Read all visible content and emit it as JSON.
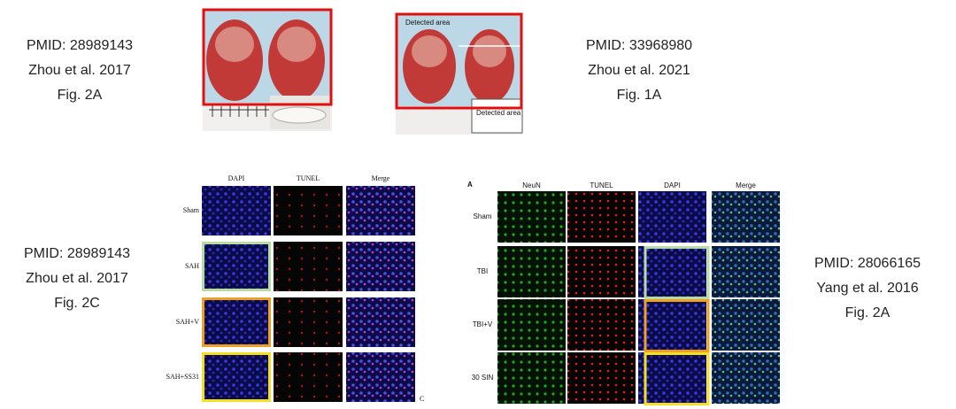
{
  "panels": [
    {
      "lines": [
        "PMID: 28989143",
        "Zhou et al. 2017",
        "Fig. 2A"
      ]
    },
    {
      "lines": [
        "PMID: 33968980",
        "Zhou et al. 2021",
        "Fig. 1A"
      ]
    },
    {
      "lines": [
        "PMID: 28989143",
        "Zhou et al. 2017",
        "Fig. 2C"
      ]
    },
    {
      "lines": [
        "PMID: 28066165",
        "Yang et al. 2016",
        "Fig. 2A"
      ]
    }
  ],
  "figure_top_right": {
    "labels": [
      "Detected area",
      "Detected area"
    ]
  },
  "figure_bottom_left": {
    "columns": [
      "DAPI",
      "TUNEL",
      "Merge"
    ],
    "rows": [
      "Sham",
      "SAH",
      "SAH+V",
      "SAH+SS31"
    ],
    "letter": "C"
  },
  "figure_bottom_right": {
    "letter": "A",
    "columns": [
      "NeuN",
      "TUNEL",
      "DAPI",
      "Merge"
    ],
    "rows": [
      "Sham",
      "TBI",
      "TBI+V",
      "30 SIN"
    ]
  }
}
